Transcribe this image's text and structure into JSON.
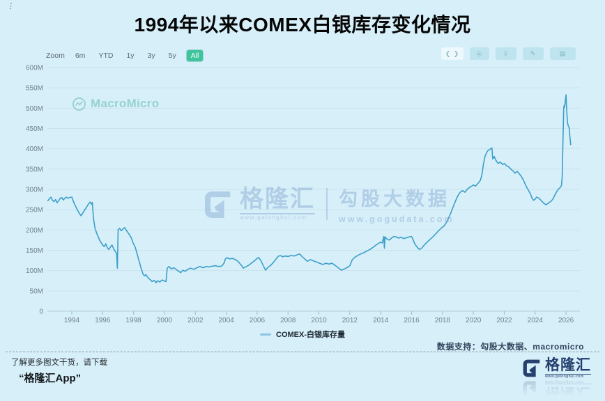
{
  "title": "1994年以来COMEX白银库存变化情况",
  "toolbar": {
    "zoom_label": "Zoom",
    "range_buttons": [
      "6m",
      "YTD",
      "1y",
      "3y",
      "5y",
      "All"
    ],
    "selected_range": "All",
    "action_icons": [
      "chevrons-icon",
      "camera-icon",
      "download-icon",
      "pencil-icon",
      "grid-icon"
    ]
  },
  "watermarks": {
    "macromicro": "MacroMicro",
    "center_brand": "格隆汇",
    "center_brand_url": "www.gelonghui.com",
    "center_partner": "勾股大数据",
    "center_partner_url": "www.gogudata.com"
  },
  "legend": {
    "label": "COMEX-白银库存量",
    "color": "#8ac6e2"
  },
  "data_support": "数据支持：勾股大数据、macromicro",
  "footer": {
    "line1": "了解更多图文干货，请下载",
    "line2": "“格隆汇App”",
    "logo_text": "格隆汇",
    "logo_url": "www.gelonghui.com"
  },
  "colors": {
    "background": "#d7eff9",
    "line": "#3b9fca",
    "grid": "#c9e3ed",
    "axis": "#b0cfdc",
    "tick_text": "#6e808b",
    "selected_range_bg": "#3fc39c"
  },
  "chart_data": {
    "type": "line",
    "title": "1994年以来COMEX白银库存变化情况",
    "xlabel": "",
    "ylabel": "",
    "unit": "M (million ounces)",
    "grid": true,
    "legend_position": "bottom",
    "xlim": [
      1992.4,
      2026.6
    ],
    "ylim": [
      0,
      600
    ],
    "x_ticks": [
      1994,
      1996,
      1998,
      2000,
      2002,
      2004,
      2006,
      2008,
      2010,
      2012,
      2014,
      2016,
      2018,
      2020,
      2022,
      2024,
      2026
    ],
    "y_ticks": [
      "0",
      "50M",
      "100M",
      "150M",
      "200M",
      "250M",
      "300M",
      "350M",
      "400M",
      "450M",
      "500M",
      "550M",
      "600M"
    ],
    "series": [
      {
        "name": "COMEX-白银库存量",
        "color": "#3b9fca",
        "points": [
          [
            1992.45,
            272
          ],
          [
            1992.55,
            277
          ],
          [
            1992.65,
            281
          ],
          [
            1992.75,
            273
          ],
          [
            1992.85,
            270
          ],
          [
            1992.95,
            275
          ],
          [
            1993.05,
            267
          ],
          [
            1993.15,
            272
          ],
          [
            1993.25,
            278
          ],
          [
            1993.35,
            280
          ],
          [
            1993.45,
            274
          ],
          [
            1993.55,
            278
          ],
          [
            1993.65,
            281
          ],
          [
            1993.75,
            278
          ],
          [
            1993.85,
            280
          ],
          [
            1994.0,
            281
          ],
          [
            1994.1,
            271
          ],
          [
            1994.2,
            262
          ],
          [
            1994.35,
            250
          ],
          [
            1994.5,
            240
          ],
          [
            1994.6,
            235
          ],
          [
            1994.7,
            241
          ],
          [
            1994.85,
            250
          ],
          [
            1995.0,
            259
          ],
          [
            1995.1,
            265
          ],
          [
            1995.2,
            269
          ],
          [
            1995.28,
            263
          ],
          [
            1995.33,
            268
          ],
          [
            1995.4,
            230
          ],
          [
            1995.5,
            205
          ],
          [
            1995.6,
            193
          ],
          [
            1995.7,
            184
          ],
          [
            1995.8,
            175
          ],
          [
            1995.9,
            169
          ],
          [
            1996.0,
            163
          ],
          [
            1996.1,
            159
          ],
          [
            1996.2,
            166
          ],
          [
            1996.3,
            156
          ],
          [
            1996.4,
            152
          ],
          [
            1996.5,
            158
          ],
          [
            1996.6,
            163
          ],
          [
            1996.7,
            155
          ],
          [
            1996.8,
            148
          ],
          [
            1996.9,
            142
          ],
          [
            1996.95,
            106
          ],
          [
            1997.0,
            201
          ],
          [
            1997.1,
            204
          ],
          [
            1997.2,
            198
          ],
          [
            1997.3,
            202
          ],
          [
            1997.42,
            206
          ],
          [
            1997.55,
            198
          ],
          [
            1997.7,
            190
          ],
          [
            1997.85,
            181
          ],
          [
            1997.95,
            170
          ],
          [
            1998.1,
            158
          ],
          [
            1998.2,
            145
          ],
          [
            1998.3,
            131
          ],
          [
            1998.4,
            118
          ],
          [
            1998.5,
            104
          ],
          [
            1998.6,
            93
          ],
          [
            1998.7,
            87
          ],
          [
            1998.8,
            90
          ],
          [
            1998.9,
            84
          ],
          [
            1999.0,
            80
          ],
          [
            1999.1,
            77
          ],
          [
            1999.2,
            73
          ],
          [
            1999.35,
            76
          ],
          [
            1999.45,
            70
          ],
          [
            1999.55,
            75
          ],
          [
            1999.7,
            72
          ],
          [
            1999.85,
            77
          ],
          [
            2000.0,
            74
          ],
          [
            2000.1,
            73
          ],
          [
            2000.18,
            106
          ],
          [
            2000.3,
            110
          ],
          [
            2000.45,
            104
          ],
          [
            2000.6,
            107
          ],
          [
            2000.75,
            103
          ],
          [
            2000.9,
            99
          ],
          [
            2001.05,
            95
          ],
          [
            2001.2,
            101
          ],
          [
            2001.35,
            98
          ],
          [
            2001.5,
            103
          ],
          [
            2001.7,
            106
          ],
          [
            2001.9,
            103
          ],
          [
            2002.1,
            107
          ],
          [
            2002.3,
            110
          ],
          [
            2002.5,
            107
          ],
          [
            2002.7,
            110
          ],
          [
            2002.9,
            109
          ],
          [
            2003.1,
            111
          ],
          [
            2003.3,
            112
          ],
          [
            2003.5,
            110
          ],
          [
            2003.7,
            111
          ],
          [
            2003.85,
            118
          ],
          [
            2003.95,
            129
          ],
          [
            2004.05,
            132
          ],
          [
            2004.2,
            129
          ],
          [
            2004.4,
            130
          ],
          [
            2004.6,
            127
          ],
          [
            2004.8,
            121
          ],
          [
            2005.0,
            112
          ],
          [
            2005.1,
            106
          ],
          [
            2005.25,
            109
          ],
          [
            2005.45,
            113
          ],
          [
            2005.65,
            119
          ],
          [
            2005.85,
            125
          ],
          [
            2006.0,
            130
          ],
          [
            2006.1,
            132
          ],
          [
            2006.25,
            124
          ],
          [
            2006.4,
            112
          ],
          [
            2006.55,
            101
          ],
          [
            2006.7,
            108
          ],
          [
            2006.85,
            112
          ],
          [
            2007.0,
            118
          ],
          [
            2007.2,
            127
          ],
          [
            2007.35,
            135
          ],
          [
            2007.5,
            137
          ],
          [
            2007.65,
            134
          ],
          [
            2007.8,
            136
          ],
          [
            2008.0,
            135
          ],
          [
            2008.2,
            137
          ],
          [
            2008.4,
            136
          ],
          [
            2008.6,
            139
          ],
          [
            2008.75,
            141
          ],
          [
            2008.9,
            135
          ],
          [
            2009.1,
            128
          ],
          [
            2009.25,
            123
          ],
          [
            2009.45,
            127
          ],
          [
            2009.65,
            124
          ],
          [
            2009.85,
            121
          ],
          [
            2010.05,
            118
          ],
          [
            2010.25,
            115
          ],
          [
            2010.45,
            118
          ],
          [
            2010.65,
            116
          ],
          [
            2010.85,
            118
          ],
          [
            2011.05,
            113
          ],
          [
            2011.25,
            107
          ],
          [
            2011.45,
            101
          ],
          [
            2011.65,
            104
          ],
          [
            2011.85,
            108
          ],
          [
            2012.0,
            112
          ],
          [
            2012.15,
            126
          ],
          [
            2012.3,
            132
          ],
          [
            2012.5,
            137
          ],
          [
            2012.7,
            141
          ],
          [
            2012.9,
            144
          ],
          [
            2013.1,
            148
          ],
          [
            2013.3,
            152
          ],
          [
            2013.5,
            157
          ],
          [
            2013.7,
            163
          ],
          [
            2013.85,
            167
          ],
          [
            2014.0,
            170
          ],
          [
            2014.1,
            168
          ],
          [
            2014.2,
            184
          ],
          [
            2014.24,
            155
          ],
          [
            2014.28,
            183
          ],
          [
            2014.4,
            178
          ],
          [
            2014.55,
            175
          ],
          [
            2014.7,
            180
          ],
          [
            2014.85,
            184
          ],
          [
            2015.0,
            183
          ],
          [
            2015.15,
            180
          ],
          [
            2015.3,
            182
          ],
          [
            2015.5,
            179
          ],
          [
            2015.7,
            181
          ],
          [
            2015.85,
            183
          ],
          [
            2016.0,
            184
          ],
          [
            2016.1,
            176
          ],
          [
            2016.2,
            166
          ],
          [
            2016.35,
            158
          ],
          [
            2016.5,
            152
          ],
          [
            2016.65,
            155
          ],
          [
            2016.8,
            162
          ],
          [
            2017.0,
            170
          ],
          [
            2017.2,
            177
          ],
          [
            2017.4,
            184
          ],
          [
            2017.6,
            192
          ],
          [
            2017.75,
            198
          ],
          [
            2017.9,
            204
          ],
          [
            2018.1,
            210
          ],
          [
            2018.25,
            218
          ],
          [
            2018.4,
            230
          ],
          [
            2018.55,
            243
          ],
          [
            2018.7,
            258
          ],
          [
            2018.85,
            272
          ],
          [
            2019.0,
            285
          ],
          [
            2019.15,
            293
          ],
          [
            2019.3,
            297
          ],
          [
            2019.45,
            293
          ],
          [
            2019.6,
            300
          ],
          [
            2019.75,
            305
          ],
          [
            2019.9,
            308
          ],
          [
            2020.0,
            311
          ],
          [
            2020.15,
            308
          ],
          [
            2020.3,
            315
          ],
          [
            2020.45,
            322
          ],
          [
            2020.55,
            335
          ],
          [
            2020.65,
            362
          ],
          [
            2020.75,
            381
          ],
          [
            2020.85,
            390
          ],
          [
            2020.95,
            396
          ],
          [
            2021.1,
            399
          ],
          [
            2021.2,
            402
          ],
          [
            2021.25,
            375
          ],
          [
            2021.35,
            381
          ],
          [
            2021.45,
            372
          ],
          [
            2021.6,
            364
          ],
          [
            2021.75,
            367
          ],
          [
            2021.9,
            361
          ],
          [
            2022.0,
            364
          ],
          [
            2022.15,
            358
          ],
          [
            2022.3,
            355
          ],
          [
            2022.45,
            349
          ],
          [
            2022.6,
            344
          ],
          [
            2022.7,
            340
          ],
          [
            2022.85,
            344
          ],
          [
            2023.0,
            337
          ],
          [
            2023.1,
            332
          ],
          [
            2023.25,
            322
          ],
          [
            2023.4,
            309
          ],
          [
            2023.55,
            299
          ],
          [
            2023.7,
            288
          ],
          [
            2023.8,
            278
          ],
          [
            2023.9,
            273
          ],
          [
            2024.0,
            276
          ],
          [
            2024.1,
            281
          ],
          [
            2024.25,
            278
          ],
          [
            2024.4,
            272
          ],
          [
            2024.55,
            266
          ],
          [
            2024.7,
            262
          ],
          [
            2024.85,
            266
          ],
          [
            2025.0,
            270
          ],
          [
            2025.15,
            276
          ],
          [
            2025.3,
            288
          ],
          [
            2025.45,
            298
          ],
          [
            2025.6,
            304
          ],
          [
            2025.7,
            309
          ],
          [
            2025.75,
            330
          ],
          [
            2025.8,
            420
          ],
          [
            2025.85,
            500
          ],
          [
            2025.88,
            507
          ],
          [
            2025.9,
            502
          ],
          [
            2025.93,
            509
          ],
          [
            2025.96,
            520
          ],
          [
            2026.0,
            533
          ],
          [
            2026.05,
            490
          ],
          [
            2026.1,
            463
          ],
          [
            2026.15,
            456
          ],
          [
            2026.2,
            452
          ],
          [
            2026.25,
            428
          ],
          [
            2026.3,
            410
          ]
        ]
      }
    ]
  }
}
